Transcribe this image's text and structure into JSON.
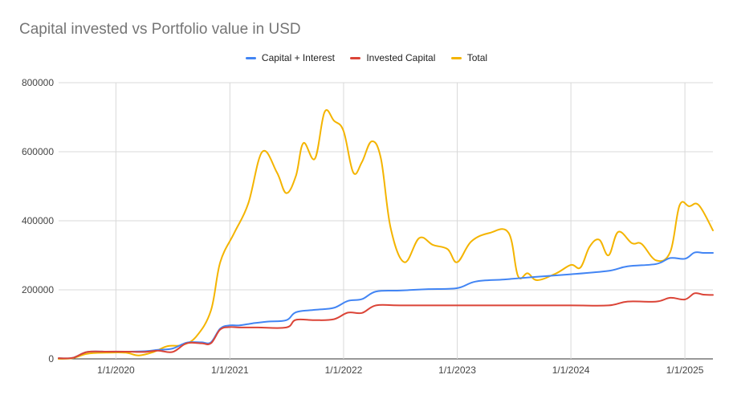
{
  "chart_data": {
    "type": "line",
    "title": "Capital invested vs Portfolio value in USD",
    "xlabel": "",
    "ylabel": "",
    "x_range": [
      "2019-07-01",
      "2025-04-01"
    ],
    "ylim": [
      0,
      800000
    ],
    "y_ticks": [
      0,
      200000,
      400000,
      600000,
      800000
    ],
    "y_tick_labels": [
      "0",
      "200000",
      "400000",
      "600000",
      "800000"
    ],
    "x_ticks": [
      "2020-01-01",
      "2021-01-01",
      "2022-01-01",
      "2023-01-01",
      "2024-01-01",
      "2025-01-01"
    ],
    "x_tick_labels": [
      "1/1/2020",
      "1/1/2021",
      "1/1/2022",
      "1/1/2023",
      "1/1/2024",
      "1/1/2025"
    ],
    "grid": true,
    "legend_position": "top",
    "series": [
      {
        "name": "Capital + Interest",
        "color": "#4285f4",
        "points": [
          [
            "2019-07-01",
            2000
          ],
          [
            "2019-08-15",
            3000
          ],
          [
            "2019-10-01",
            20000
          ],
          [
            "2019-12-01",
            21000
          ],
          [
            "2020-02-01",
            21000
          ],
          [
            "2020-04-01",
            22000
          ],
          [
            "2020-05-15",
            26000
          ],
          [
            "2020-07-01",
            30000
          ],
          [
            "2020-08-15",
            47000
          ],
          [
            "2020-10-01",
            48000
          ],
          [
            "2020-11-01",
            48000
          ],
          [
            "2020-12-01",
            88000
          ],
          [
            "2021-01-01",
            97000
          ],
          [
            "2021-02-01",
            97000
          ],
          [
            "2021-03-15",
            103000
          ],
          [
            "2021-05-01",
            108000
          ],
          [
            "2021-07-01",
            112000
          ],
          [
            "2021-08-01",
            135000
          ],
          [
            "2021-10-01",
            142000
          ],
          [
            "2021-12-01",
            148000
          ],
          [
            "2022-01-15",
            168000
          ],
          [
            "2022-03-01",
            173000
          ],
          [
            "2022-04-15",
            195000
          ],
          [
            "2022-07-01",
            198000
          ],
          [
            "2022-10-01",
            202000
          ],
          [
            "2023-01-01",
            205000
          ],
          [
            "2023-03-01",
            224000
          ],
          [
            "2023-06-01",
            230000
          ],
          [
            "2023-09-01",
            237000
          ],
          [
            "2024-01-01",
            245000
          ],
          [
            "2024-05-01",
            255000
          ],
          [
            "2024-07-01",
            268000
          ],
          [
            "2024-10-01",
            275000
          ],
          [
            "2024-11-15",
            292000
          ],
          [
            "2025-01-01",
            290000
          ],
          [
            "2025-02-01",
            308000
          ],
          [
            "2025-03-01",
            307000
          ],
          [
            "2025-04-01",
            307000
          ]
        ]
      },
      {
        "name": "Invested Capital",
        "color": "#db4437",
        "points": [
          [
            "2019-07-01",
            2000
          ],
          [
            "2019-08-15",
            3000
          ],
          [
            "2019-10-01",
            20000
          ],
          [
            "2019-12-01",
            21000
          ],
          [
            "2020-02-01",
            21000
          ],
          [
            "2020-04-01",
            20000
          ],
          [
            "2020-05-15",
            24000
          ],
          [
            "2020-07-01",
            20000
          ],
          [
            "2020-08-15",
            45000
          ],
          [
            "2020-10-01",
            45000
          ],
          [
            "2020-11-01",
            45000
          ],
          [
            "2020-12-01",
            85000
          ],
          [
            "2021-01-01",
            92000
          ],
          [
            "2021-02-01",
            91000
          ],
          [
            "2021-04-01",
            91000
          ],
          [
            "2021-07-01",
            91000
          ],
          [
            "2021-08-01",
            113000
          ],
          [
            "2021-10-01",
            112000
          ],
          [
            "2021-12-01",
            115000
          ],
          [
            "2022-01-15",
            134000
          ],
          [
            "2022-03-01",
            133000
          ],
          [
            "2022-04-15",
            155000
          ],
          [
            "2022-07-01",
            155000
          ],
          [
            "2023-01-01",
            155000
          ],
          [
            "2023-07-01",
            155000
          ],
          [
            "2024-01-01",
            155000
          ],
          [
            "2024-05-01",
            155000
          ],
          [
            "2024-07-01",
            166000
          ],
          [
            "2024-10-01",
            166000
          ],
          [
            "2024-11-15",
            177000
          ],
          [
            "2025-01-01",
            172000
          ],
          [
            "2025-02-01",
            190000
          ],
          [
            "2025-03-01",
            186000
          ],
          [
            "2025-04-01",
            185000
          ]
        ]
      },
      {
        "name": "Total",
        "color": "#f4b400",
        "points": [
          [
            "2019-07-01",
            0
          ],
          [
            "2019-08-15",
            2000
          ],
          [
            "2019-10-01",
            15000
          ],
          [
            "2019-12-01",
            18000
          ],
          [
            "2020-02-01",
            18000
          ],
          [
            "2020-03-15",
            10000
          ],
          [
            "2020-05-01",
            20000
          ],
          [
            "2020-06-15",
            37000
          ],
          [
            "2020-08-01",
            40000
          ],
          [
            "2020-09-15",
            65000
          ],
          [
            "2020-11-01",
            140000
          ],
          [
            "2020-12-01",
            280000
          ],
          [
            "2021-01-15",
            365000
          ],
          [
            "2021-03-01",
            450000
          ],
          [
            "2021-04-15",
            600000
          ],
          [
            "2021-06-01",
            540000
          ],
          [
            "2021-07-01",
            480000
          ],
          [
            "2021-08-01",
            530000
          ],
          [
            "2021-08-25",
            625000
          ],
          [
            "2021-10-01",
            580000
          ],
          [
            "2021-11-01",
            715000
          ],
          [
            "2021-12-01",
            690000
          ],
          [
            "2022-01-01",
            660000
          ],
          [
            "2022-02-01",
            540000
          ],
          [
            "2022-03-01",
            570000
          ],
          [
            "2022-04-01",
            630000
          ],
          [
            "2022-05-01",
            580000
          ],
          [
            "2022-06-01",
            380000
          ],
          [
            "2022-07-15",
            280000
          ],
          [
            "2022-09-01",
            350000
          ],
          [
            "2022-10-15",
            330000
          ],
          [
            "2022-12-01",
            318000
          ],
          [
            "2023-01-01",
            280000
          ],
          [
            "2023-02-15",
            340000
          ],
          [
            "2023-04-15",
            365000
          ],
          [
            "2023-06-15",
            365000
          ],
          [
            "2023-07-15",
            240000
          ],
          [
            "2023-08-15",
            248000
          ],
          [
            "2023-09-15",
            228000
          ],
          [
            "2023-11-15",
            248000
          ],
          [
            "2024-01-01",
            272000
          ],
          [
            "2024-02-01",
            265000
          ],
          [
            "2024-03-01",
            325000
          ],
          [
            "2024-04-01",
            345000
          ],
          [
            "2024-05-01",
            300000
          ],
          [
            "2024-06-01",
            368000
          ],
          [
            "2024-07-15",
            335000
          ],
          [
            "2024-08-15",
            333000
          ],
          [
            "2024-10-01",
            285000
          ],
          [
            "2024-11-15",
            310000
          ],
          [
            "2024-12-15",
            445000
          ],
          [
            "2025-01-15",
            442000
          ],
          [
            "2025-02-15",
            445000
          ],
          [
            "2025-04-01",
            372000
          ]
        ]
      }
    ]
  }
}
